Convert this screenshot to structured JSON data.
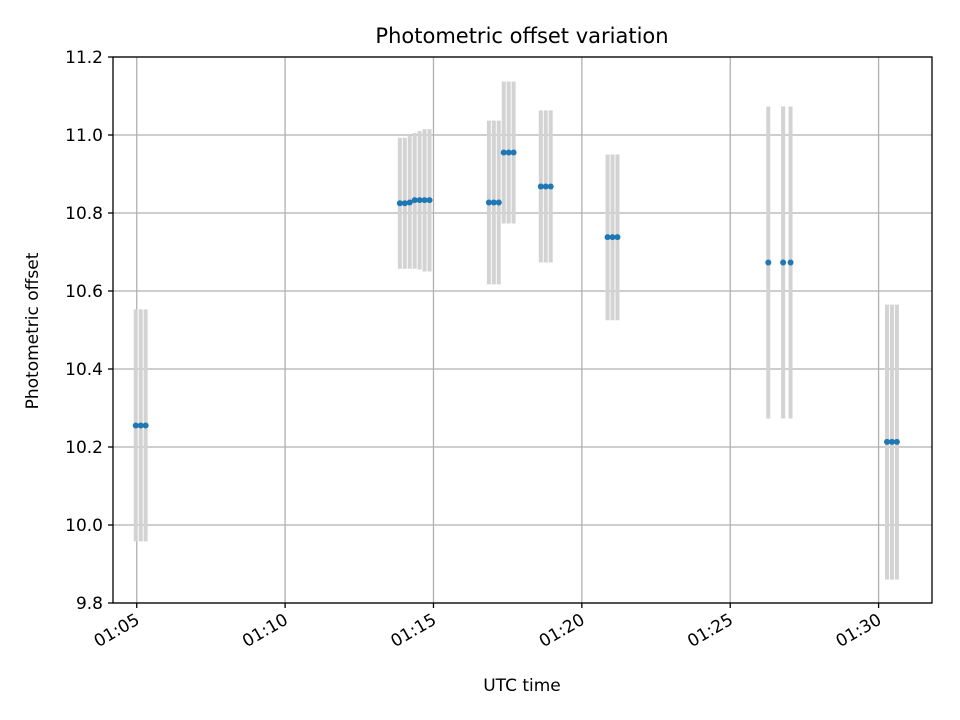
{
  "chart_data": {
    "type": "scatter",
    "title": "Photometric offset variation",
    "xlabel": "UTC time",
    "ylabel": "Photometric offset",
    "xlim": [
      "01:04:12",
      "01:31:48"
    ],
    "ylim": [
      9.8,
      11.2
    ],
    "grid": true,
    "x_ticks": [
      "01:05",
      "01:10",
      "01:15",
      "01:20",
      "01:25",
      "01:30"
    ],
    "y_ticks": [
      "9.8",
      "10.0",
      "10.2",
      "10.4",
      "10.6",
      "10.8",
      "11.0",
      "11.2"
    ],
    "series": [
      {
        "marker_color": "#1f77b4",
        "errorbar_color": "#d3d3d3",
        "points": [
          {
            "t": "01:04:58",
            "y": 10.255,
            "low": 9.958,
            "high": 10.553
          },
          {
            "t": "01:05:08",
            "y": 10.255,
            "low": 9.958,
            "high": 10.553
          },
          {
            "t": "01:05:18",
            "y": 10.255,
            "low": 9.958,
            "high": 10.553
          },
          {
            "t": "01:13:52",
            "y": 10.825,
            "low": 10.657,
            "high": 10.993
          },
          {
            "t": "01:14:02",
            "y": 10.825,
            "low": 10.657,
            "high": 10.993
          },
          {
            "t": "01:14:12",
            "y": 10.827,
            "low": 10.657,
            "high": 10.997
          },
          {
            "t": "01:14:22",
            "y": 10.833,
            "low": 10.657,
            "high": 11.005
          },
          {
            "t": "01:14:32",
            "y": 10.833,
            "low": 10.655,
            "high": 11.01
          },
          {
            "t": "01:14:42",
            "y": 10.833,
            "low": 10.65,
            "high": 11.015
          },
          {
            "t": "01:14:52",
            "y": 10.833,
            "low": 10.65,
            "high": 11.015
          },
          {
            "t": "01:16:52",
            "y": 10.827,
            "low": 10.617,
            "high": 11.037
          },
          {
            "t": "01:17:02",
            "y": 10.827,
            "low": 10.617,
            "high": 11.037
          },
          {
            "t": "01:17:12",
            "y": 10.827,
            "low": 10.617,
            "high": 11.037
          },
          {
            "t": "01:17:22",
            "y": 10.955,
            "low": 10.773,
            "high": 11.137
          },
          {
            "t": "01:17:32",
            "y": 10.955,
            "low": 10.773,
            "high": 11.137
          },
          {
            "t": "01:17:42",
            "y": 10.955,
            "low": 10.773,
            "high": 11.137
          },
          {
            "t": "01:18:37",
            "y": 10.868,
            "low": 10.673,
            "high": 11.063
          },
          {
            "t": "01:18:47",
            "y": 10.868,
            "low": 10.673,
            "high": 11.063
          },
          {
            "t": "01:18:57",
            "y": 10.868,
            "low": 10.673,
            "high": 11.063
          },
          {
            "t": "01:20:52",
            "y": 10.738,
            "low": 10.525,
            "high": 10.95
          },
          {
            "t": "01:21:02",
            "y": 10.738,
            "low": 10.525,
            "high": 10.95
          },
          {
            "t": "01:21:12",
            "y": 10.738,
            "low": 10.525,
            "high": 10.95
          },
          {
            "t": "01:26:17",
            "y": 10.673,
            "low": 10.273,
            "high": 11.073
          },
          {
            "t": "01:26:47",
            "y": 10.673,
            "low": 10.273,
            "high": 11.073
          },
          {
            "t": "01:27:02",
            "y": 10.673,
            "low": 10.273,
            "high": 11.073
          },
          {
            "t": "01:30:17",
            "y": 10.213,
            "low": 9.86,
            "high": 10.565
          },
          {
            "t": "01:30:27",
            "y": 10.213,
            "low": 9.86,
            "high": 10.565
          },
          {
            "t": "01:30:37",
            "y": 10.213,
            "low": 9.86,
            "high": 10.565
          }
        ]
      }
    ]
  }
}
